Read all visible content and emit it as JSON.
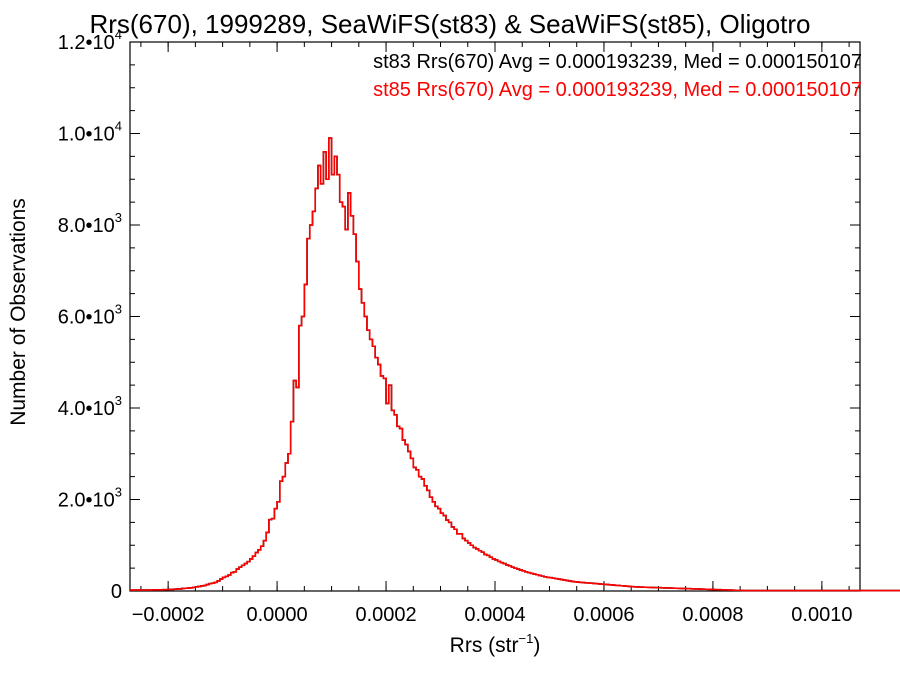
{
  "chart_data": {
    "type": "histogram",
    "title": "Rrs(670), 1999289, SeaWiFS(st83) & SeaWiFS(st85), Oligotro",
    "xlabel": "Rrs (str",
    "xlabel_sup": "−1",
    "xlabel_close": ")",
    "ylabel": "Number of Observations",
    "xlim": [
      -0.00027,
      0.00107
    ],
    "ylim": [
      0,
      12000
    ],
    "x_ticks": [
      -0.0002,
      0.0,
      0.0002,
      0.0004,
      0.0006,
      0.0008,
      0.001
    ],
    "x_tick_labels": [
      "−0.0002",
      "0.0000",
      "0.0002",
      "0.0004",
      "0.0006",
      "0.0008",
      "0.0010"
    ],
    "y_ticks": [
      {
        "value": 0,
        "base": "0",
        "exp": ""
      },
      {
        "value": 2000,
        "base": "2.0•10",
        "exp": "3"
      },
      {
        "value": 4000,
        "base": "4.0•10",
        "exp": "3"
      },
      {
        "value": 6000,
        "base": "6.0•10",
        "exp": "3"
      },
      {
        "value": 8000,
        "base": "8.0•10",
        "exp": "3"
      },
      {
        "value": 10000,
        "base": "1.0•10",
        "exp": "4"
      },
      {
        "value": 12000,
        "base": "1.2•10",
        "exp": "4"
      }
    ],
    "grid": false,
    "legend_position": "top-right",
    "annotations": [
      {
        "text": "st83 Rrs(670) Avg = 0.000193239, Med = 0.000150107",
        "color": "#000000"
      },
      {
        "text": "st85 Rrs(670) Avg = 0.000193239, Med = 0.000150107",
        "color": "#ff0000"
      }
    ],
    "series": [
      {
        "name": "st83",
        "color": "#000000"
      },
      {
        "name": "st85",
        "color": "#ff0000"
      }
    ],
    "bins": {
      "start": -0.00027,
      "width": 5e-06,
      "counts": [
        20,
        20,
        20,
        20,
        20,
        20,
        20,
        20,
        25,
        25,
        25,
        25,
        30,
        30,
        35,
        35,
        40,
        45,
        45,
        55,
        60,
        65,
        70,
        80,
        90,
        100,
        110,
        120,
        140,
        160,
        170,
        190,
        220,
        260,
        300,
        320,
        350,
        400,
        420,
        480,
        520,
        560,
        600,
        640,
        700,
        760,
        840,
        900,
        980,
        1100,
        1280,
        1560,
        1580,
        1800,
        1950,
        2400,
        2500,
        2800,
        3000,
        3700,
        4600,
        4450,
        5800,
        6000,
        6700,
        7700,
        8000,
        8300,
        8800,
        9300,
        8900,
        9600,
        9000,
        9900,
        9100,
        9500,
        9100,
        8500,
        8400,
        7900,
        8700,
        8200,
        7800,
        7200,
        6600,
        6300,
        6000,
        5700,
        5500,
        5350,
        5100,
        4950,
        4700,
        4650,
        4100,
        4500,
        3950,
        3850,
        3600,
        3550,
        3300,
        3200,
        3050,
        2900,
        2700,
        2650,
        2500,
        2450,
        2300,
        2200,
        2050,
        1950,
        1850,
        1800,
        1700,
        1650,
        1550,
        1500,
        1400,
        1350,
        1250,
        1250,
        1150,
        1100,
        1050,
        1000,
        950,
        920,
        880,
        850,
        800,
        780,
        740,
        700,
        680,
        650,
        620,
        600,
        570,
        550,
        520,
        500,
        480,
        460,
        440,
        420,
        400,
        385,
        370,
        355,
        340,
        325,
        310,
        300,
        290,
        280,
        270,
        260,
        250,
        240,
        230,
        220,
        210,
        200,
        195,
        190,
        185,
        180,
        175,
        170,
        165,
        160,
        155,
        150,
        145,
        140,
        135,
        130,
        125,
        120,
        115,
        110,
        105,
        100,
        95,
        90,
        88,
        86,
        84,
        82,
        80,
        78,
        76,
        74,
        72,
        70,
        68,
        66,
        64,
        62,
        60,
        58,
        56,
        54,
        52,
        50,
        48,
        46,
        44,
        42,
        40,
        38,
        36,
        34,
        32,
        30,
        28,
        26,
        24,
        22,
        20,
        18,
        16,
        14,
        12,
        10,
        10,
        10,
        10,
        10,
        10,
        10,
        10,
        10,
        10,
        10,
        10,
        10,
        10,
        10,
        10,
        10,
        10,
        10,
        10,
        10,
        10,
        10,
        10,
        10,
        10,
        10,
        10,
        10,
        10,
        10,
        10,
        10,
        10,
        10,
        10,
        10,
        10,
        10,
        10,
        10,
        10,
        10,
        10,
        10,
        10,
        10,
        10,
        10,
        10,
        10,
        10,
        10,
        10,
        10,
        10,
        10,
        10,
        10,
        10,
        10
      ]
    }
  }
}
